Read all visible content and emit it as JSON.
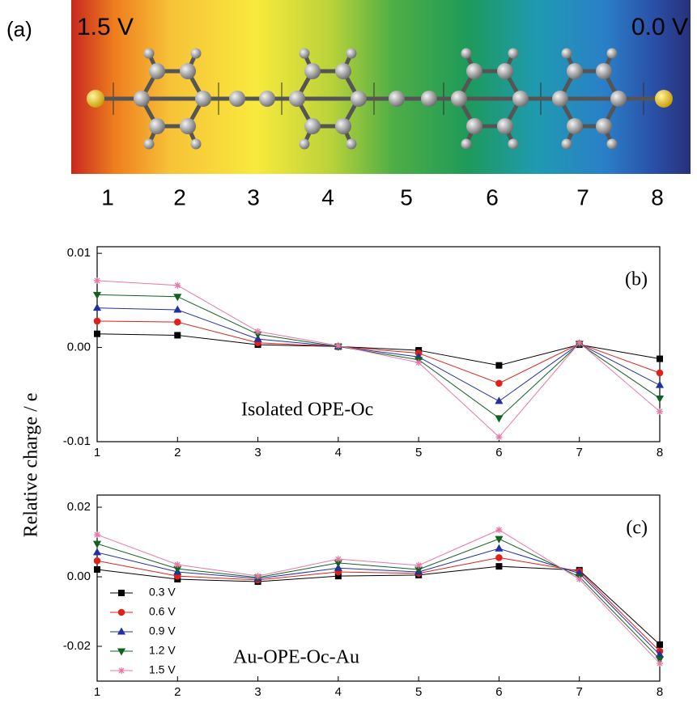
{
  "panel_a": {
    "label": "(a)",
    "voltages": [
      "1.5 V",
      "0.0 V"
    ],
    "positions": [
      "1",
      "2",
      "3",
      "4",
      "5",
      "6",
      "7",
      "8"
    ]
  },
  "chart_data": [
    {
      "type": "line",
      "panel_label": "(b)",
      "annotation": "Isolated OPE-Oc",
      "ylabel": "Relative charge / e",
      "x": [
        1,
        2,
        3,
        4,
        5,
        6,
        7,
        8
      ],
      "xlim": [
        1,
        8
      ],
      "xticks": [
        1,
        2,
        3,
        4,
        5,
        6,
        7,
        8
      ],
      "ylim": [
        -0.01,
        0.0107
      ],
      "yticks": [
        {
          "value": -0.01,
          "label": "-0.01"
        },
        {
          "value": 0,
          "label": "0.00"
        },
        {
          "value": 0.01,
          "label": "0.01"
        }
      ],
      "legend": false,
      "series": [
        {
          "color": "#000000",
          "marker": "square",
          "values": [
            0.00145,
            0.0013,
            0.0003,
            0.0001,
            -0.0003,
            -0.0019,
            0.0003,
            -0.0012
          ]
        },
        {
          "color": "#e0201a",
          "marker": "circle",
          "values": [
            0.0028,
            0.0027,
            0.0005,
            0.0001,
            -0.0006,
            -0.0038,
            0.0004,
            -0.0027
          ]
        },
        {
          "color": "#2030a0",
          "marker": "triangle-up",
          "values": [
            0.0042,
            0.004,
            0.0009,
            0.0001,
            -0.001,
            -0.0057,
            0.0004,
            -0.004
          ]
        },
        {
          "color": "#106020",
          "marker": "triangle-down",
          "values": [
            0.0056,
            0.0054,
            0.0014,
            0.0001,
            -0.0013,
            -0.0075,
            0.0004,
            -0.0054
          ]
        },
        {
          "color": "#e878a8",
          "marker": "star",
          "values": [
            0.0071,
            0.0066,
            0.0017,
            0.0002,
            -0.0016,
            -0.0095,
            0.0005,
            -0.0068
          ]
        }
      ]
    },
    {
      "type": "line",
      "panel_label": "(c)",
      "annotation": "Au-OPE-Oc-Au",
      "x": [
        1,
        2,
        3,
        4,
        5,
        6,
        7,
        8
      ],
      "xlim": [
        1,
        8
      ],
      "xticks": [
        1,
        2,
        3,
        4,
        5,
        6,
        7,
        8
      ],
      "ylim": [
        -0.03,
        0.0235
      ],
      "yticks": [
        {
          "value": -0.02,
          "label": "-0.02"
        },
        {
          "value": 0,
          "label": "0.00"
        },
        {
          "value": 0.02,
          "label": "0.02"
        }
      ],
      "legend": "lower left",
      "series": [
        {
          "name": "0.3 V",
          "color": "#000000",
          "marker": "square",
          "values": [
            0.0021,
            -0.0007,
            -0.0014,
            0.0002,
            0.0005,
            0.003,
            0.0019,
            -0.0195
          ]
        },
        {
          "name": "0.6 V",
          "color": "#e0201a",
          "marker": "circle",
          "values": [
            0.0046,
            0.0002,
            -0.0009,
            0.0014,
            0.001,
            0.0055,
            0.0016,
            -0.0214
          ]
        },
        {
          "name": "0.9 V",
          "color": "#2030a0",
          "marker": "triangle-up",
          "values": [
            0.007,
            0.0014,
            -0.0005,
            0.0025,
            0.0014,
            0.0081,
            0.001,
            -0.0224
          ]
        },
        {
          "name": "1.2 V",
          "color": "#106020",
          "marker": "triangle-down",
          "values": [
            0.0095,
            0.0023,
            -0.0002,
            0.004,
            0.0021,
            0.0109,
            0,
            -0.0237
          ]
        },
        {
          "name": "1.5 V",
          "color": "#e878a8",
          "marker": "star",
          "values": [
            0.0121,
            0.0035,
            0.0002,
            0.0051,
            0.0033,
            0.0135,
            -0.0007,
            -0.0249
          ]
        }
      ]
    }
  ]
}
